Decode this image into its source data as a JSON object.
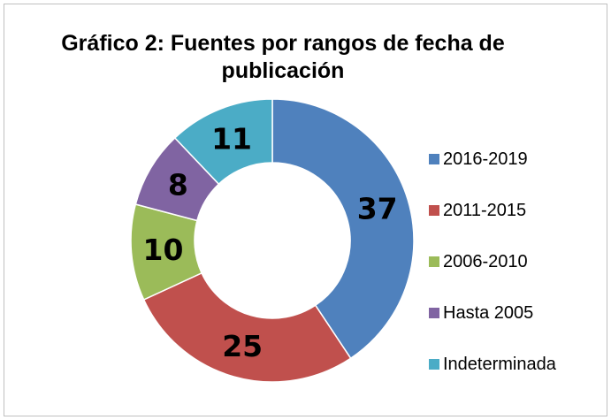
{
  "chart_data": {
    "type": "donut",
    "title": "Gráfico 2: Fuentes  por rangos de fecha de publicación",
    "categories": [
      "2016-2019",
      "2011-2015",
      "2006-2010",
      "Hasta 2005",
      "Indeterminada"
    ],
    "values": [
      37,
      25,
      10,
      8,
      11
    ],
    "colors": [
      "#4f81bd",
      "#c0504d",
      "#9bbb59",
      "#8064a2",
      "#4bacc6"
    ],
    "legend": "right"
  }
}
